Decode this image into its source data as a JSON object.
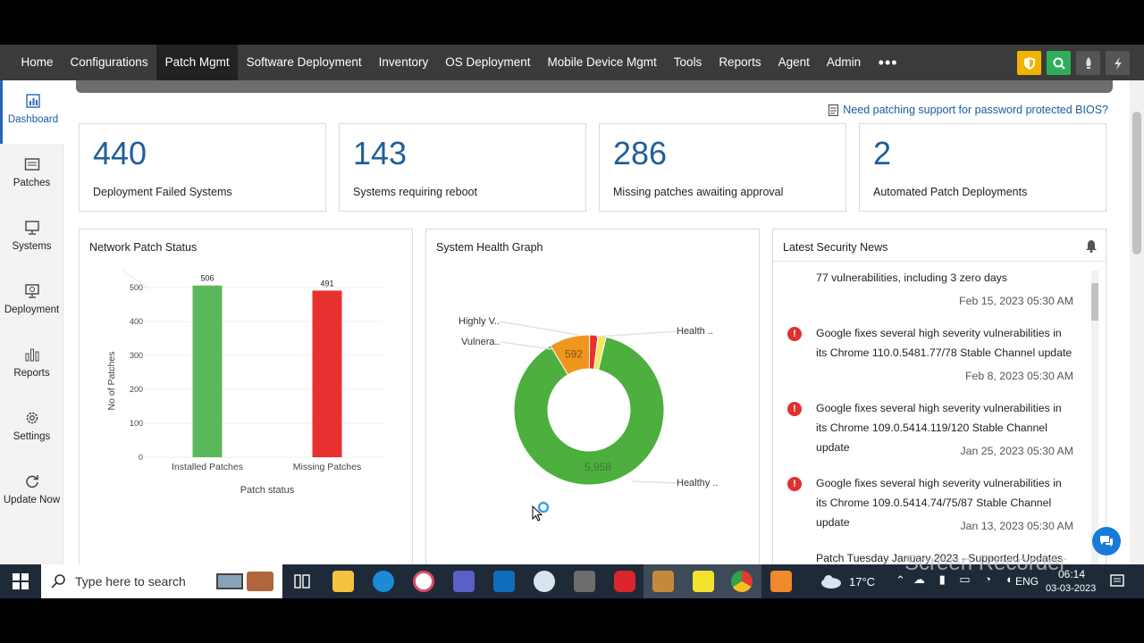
{
  "nav": {
    "items": [
      "Home",
      "Configurations",
      "Patch Mgmt",
      "Software Deployment",
      "Inventory",
      "OS Deployment",
      "Mobile Device Mgmt",
      "Tools",
      "Reports",
      "Agent",
      "Admin"
    ],
    "active_index": 2,
    "more": "•••"
  },
  "sidebar": {
    "items": [
      {
        "label": "Dashboard",
        "icon": "dashboard-icon",
        "active": true
      },
      {
        "label": "Patches",
        "icon": "patches-icon"
      },
      {
        "label": "Systems",
        "icon": "systems-icon"
      },
      {
        "label": "Deployment",
        "icon": "deployment-icon"
      },
      {
        "label": "Reports",
        "icon": "reports-icon"
      },
      {
        "label": "Settings",
        "icon": "gear-icon"
      },
      {
        "label": "Update Now",
        "icon": "refresh-icon"
      }
    ]
  },
  "bios_link": "Need patching support for password protected BIOS?",
  "cards": [
    {
      "value": "440",
      "label": "Deployment Failed Systems"
    },
    {
      "value": "143",
      "label": "Systems requiring reboot"
    },
    {
      "value": "286",
      "label": "Missing patches awaiting approval"
    },
    {
      "value": "2",
      "label": "Automated Patch Deployments"
    }
  ],
  "network_panel": {
    "title": "Network Patch Status"
  },
  "health_panel": {
    "title": "System Health Graph"
  },
  "news_panel": {
    "title": "Latest Security News",
    "items": [
      {
        "text": "77 vulnerabilities, including 3 zero days",
        "date": "Feb 15, 2023 05:30 AM",
        "alert": false
      },
      {
        "text": "Google fixes several high severity vulnerabilities in its Chrome 110.0.5481.77/78 Stable Channel update",
        "date": "Feb 8, 2023 05:30 AM",
        "alert": true
      },
      {
        "text": "Google fixes several high severity vulnerabilities in its Chrome 109.0.5414.119/120 Stable Channel update",
        "date": "Jan 25, 2023 05:30 AM",
        "alert": true
      },
      {
        "text": "Google fixes several high severity vulnerabilities in its Chrome 109.0.5414.74/75/87 Stable Channel update",
        "date": "Jan 13, 2023 05:30 AM",
        "alert": true
      },
      {
        "text": "Patch Tuesday January 2023 - Supported Updates",
        "date": "",
        "alert": false
      }
    ]
  },
  "chart_data": [
    {
      "type": "bar",
      "title": "",
      "xlabel": "Patch status",
      "ylabel": "No of Patches",
      "categories": [
        "Installed Patches",
        "Missing Patches"
      ],
      "values": [
        506,
        491
      ],
      "colors": [
        "#5cb85c",
        "#e8302e"
      ],
      "ylim": [
        0,
        500
      ],
      "yticks": [
        0,
        100,
        200,
        300,
        400,
        500
      ],
      "grid": true
    },
    {
      "type": "pie",
      "variant": "donut",
      "slices": [
        {
          "label": "Healthy ..",
          "value": 5958,
          "color": "#4caf3e",
          "shown_value": "5,958"
        },
        {
          "label": "Vulnera..",
          "value": 592,
          "color": "#f0961e",
          "shown_value": "592"
        },
        {
          "label": "Highly V..",
          "value": 120,
          "color": "#e8302e",
          "shown_value": ""
        },
        {
          "label": "Health ..",
          "value": 120,
          "color": "#f5e65a",
          "shown_value": ""
        }
      ]
    }
  ],
  "taskbar": {
    "search_placeholder": "Type here to search",
    "weather": "17°C",
    "lang": "ENG",
    "time": "06:14",
    "date": "03-03-2023"
  },
  "watermark": "Screen Recorder"
}
